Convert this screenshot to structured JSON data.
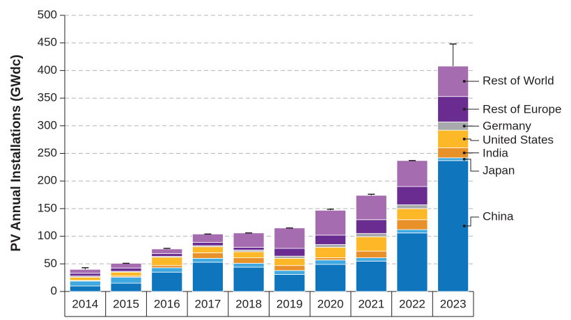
{
  "chart_data": {
    "type": "stacked_bar",
    "y_label": "PV Annual Installations (GWdc)",
    "categories": [
      "2014",
      "2015",
      "2016",
      "2017",
      "2018",
      "2019",
      "2020",
      "2021",
      "2022",
      "2023"
    ],
    "series": [
      {
        "name": "China",
        "color": "#0f75bc",
        "values": [
          10,
          15,
          35,
          53,
          44,
          31,
          49,
          55,
          106,
          237
        ]
      },
      {
        "name": "Japan",
        "color": "#3fa9e0",
        "values": [
          9,
          11,
          8,
          7,
          7,
          7,
          8,
          6,
          6,
          5
        ]
      },
      {
        "name": "India",
        "color": "#e8912a",
        "values": [
          1,
          2,
          4,
          10,
          10,
          9,
          4,
          12,
          18,
          18
        ]
      },
      {
        "name": "United States",
        "color": "#fdb827",
        "values": [
          6,
          7,
          15,
          11,
          11,
          13,
          19,
          26,
          20,
          32
        ]
      },
      {
        "name": "Germany",
        "color": "#a7a9ac",
        "values": [
          2,
          1.5,
          1.5,
          2,
          3,
          4,
          5,
          6,
          7,
          15
        ]
      },
      {
        "name": "Rest of Europe",
        "color": "#6a2c91",
        "values": [
          5,
          6,
          5,
          6,
          5,
          14,
          17,
          25,
          33,
          46
        ]
      },
      {
        "name": "Rest of World",
        "color": "#a56db0",
        "values": [
          7,
          8.5,
          8.5,
          15,
          26,
          37,
          45,
          44,
          47,
          55
        ]
      }
    ],
    "error_top": [
      43,
      51,
      78,
      104,
      106,
      115,
      149,
      176,
      237,
      448
    ],
    "ylim": [
      0,
      500
    ],
    "yticks": [
      0,
      50,
      100,
      150,
      200,
      250,
      300,
      350,
      400,
      450,
      500
    ],
    "grid": true
  }
}
